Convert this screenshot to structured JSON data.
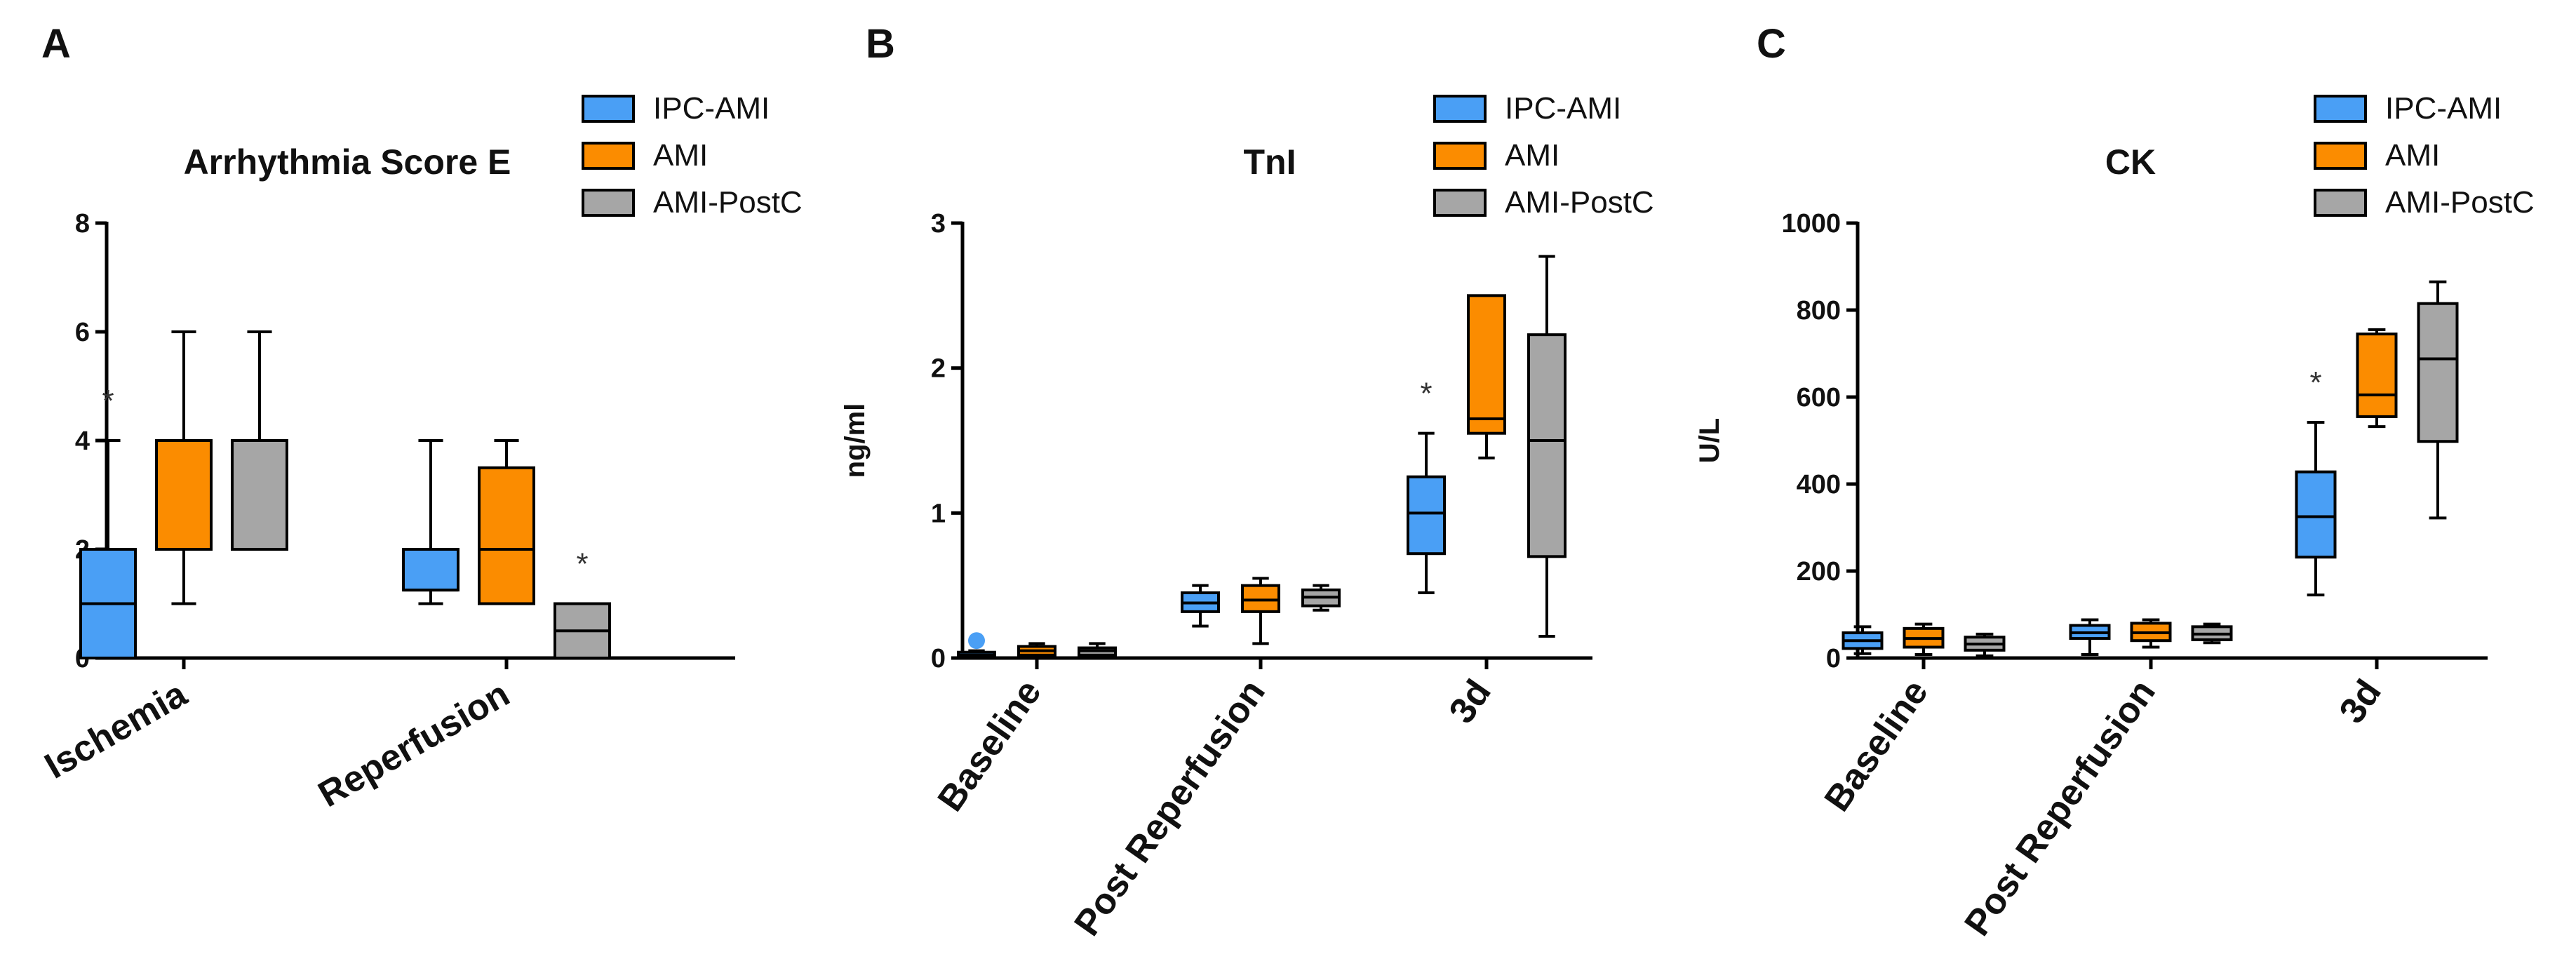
{
  "colors": {
    "ipc": "#4a9ff5",
    "ami": "#fb8c00",
    "postc": "#a6a6a6",
    "outline": "#000000"
  },
  "chart_data": [
    {
      "type": "box",
      "panel": "A",
      "title": "Arrhythmia Score E",
      "ylabel": "",
      "ylim": [
        0,
        8
      ],
      "yticks": [
        0,
        2,
        4,
        6,
        8
      ],
      "categories": [
        "Ischemia",
        "Reperfusion"
      ],
      "legend": [
        "IPC-AMI",
        "AMI",
        "AMI-PostC"
      ],
      "series": [
        {
          "name": "IPC-AMI",
          "boxes": [
            {
              "min": 0,
              "q1": 0,
              "median": 1,
              "q3": 2,
              "max": 4,
              "star": "*"
            },
            {
              "min": 1,
              "q1": 1.25,
              "median": 1.25,
              "q3": 2,
              "max": 4
            }
          ]
        },
        {
          "name": "AMI",
          "boxes": [
            {
              "min": 1,
              "q1": 2,
              "median": 2,
              "q3": 4,
              "max": 6
            },
            {
              "min": 1,
              "q1": 1,
              "median": 2,
              "q3": 3.5,
              "max": 4
            }
          ]
        },
        {
          "name": "AMI-PostC",
          "boxes": [
            {
              "min": 2,
              "q1": 2,
              "median": 4,
              "q3": 4,
              "max": 6
            },
            {
              "min": 0,
              "q1": 0,
              "median": 0.5,
              "q3": 1,
              "max": 1,
              "star": "*"
            }
          ]
        }
      ]
    },
    {
      "type": "box",
      "panel": "B",
      "title": "TnI",
      "ylabel": "ng/ml",
      "ylim": [
        0,
        3
      ],
      "yticks": [
        0,
        1,
        2,
        3
      ],
      "categories": [
        "Baseline",
        "Post Reperfusion",
        "3d"
      ],
      "legend": [
        "IPC-AMI",
        "AMI",
        "AMI-PostC"
      ],
      "series": [
        {
          "name": "IPC-AMI",
          "boxes": [
            {
              "min": 0,
              "q1": 0.01,
              "median": 0.02,
              "q3": 0.04,
              "max": 0.05,
              "outlier": 0.12
            },
            {
              "min": 0.22,
              "q1": 0.32,
              "median": 0.38,
              "q3": 0.45,
              "max": 0.5
            },
            {
              "min": 0.45,
              "q1": 0.72,
              "median": 1.0,
              "q3": 1.25,
              "max": 1.55,
              "star": "*"
            }
          ]
        },
        {
          "name": "AMI",
          "boxes": [
            {
              "min": 0,
              "q1": 0.02,
              "median": 0.05,
              "q3": 0.08,
              "max": 0.1
            },
            {
              "min": 0.1,
              "q1": 0.32,
              "median": 0.4,
              "q3": 0.5,
              "max": 0.55
            },
            {
              "min": 1.38,
              "q1": 1.55,
              "median": 1.65,
              "q3": 2.5,
              "max": 2.5
            }
          ]
        },
        {
          "name": "AMI-PostC",
          "boxes": [
            {
              "min": 0,
              "q1": 0.02,
              "median": 0.05,
              "q3": 0.07,
              "max": 0.1
            },
            {
              "min": 0.33,
              "q1": 0.36,
              "median": 0.42,
              "q3": 0.47,
              "max": 0.5
            },
            {
              "min": 0.15,
              "q1": 0.7,
              "median": 1.5,
              "q3": 2.23,
              "max": 2.77
            }
          ]
        }
      ]
    },
    {
      "type": "box",
      "panel": "C",
      "title": "CK",
      "ylabel": "U/L",
      "ylim": [
        0,
        1000
      ],
      "yticks": [
        0,
        200,
        400,
        600,
        800,
        1000
      ],
      "categories": [
        "Baseline",
        "Post Reperfusion",
        "3d"
      ],
      "legend": [
        "IPC-AMI",
        "AMI",
        "AMI-PostC"
      ],
      "series": [
        {
          "name": "IPC-AMI",
          "boxes": [
            {
              "min": 10,
              "q1": 22,
              "median": 40,
              "q3": 58,
              "max": 72
            },
            {
              "min": 8,
              "q1": 45,
              "median": 58,
              "q3": 75,
              "max": 88
            },
            {
              "min": 145,
              "q1": 232,
              "median": 325,
              "q3": 428,
              "max": 542,
              "star": "*"
            }
          ]
        },
        {
          "name": "AMI",
          "boxes": [
            {
              "min": 8,
              "q1": 25,
              "median": 45,
              "q3": 68,
              "max": 78
            },
            {
              "min": 25,
              "q1": 40,
              "median": 58,
              "q3": 80,
              "max": 88
            },
            {
              "min": 532,
              "q1": 555,
              "median": 605,
              "q3": 745,
              "max": 755
            }
          ]
        },
        {
          "name": "AMI-PostC",
          "boxes": [
            {
              "min": 5,
              "q1": 18,
              "median": 32,
              "q3": 48,
              "max": 55
            },
            {
              "min": 35,
              "q1": 42,
              "median": 55,
              "q3": 72,
              "max": 78
            },
            {
              "min": 322,
              "q1": 498,
              "median": 688,
              "q3": 815,
              "max": 865
            }
          ]
        }
      ]
    }
  ]
}
